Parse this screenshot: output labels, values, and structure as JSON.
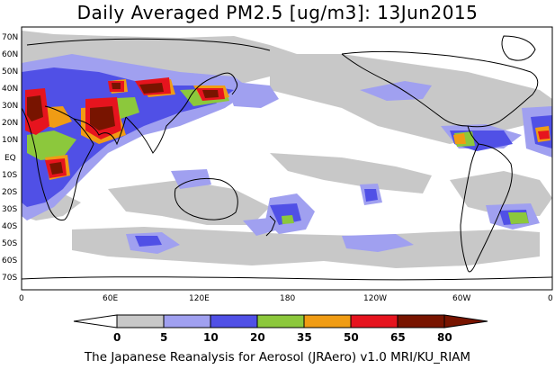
{
  "title": "Daily Averaged PM2.5 [ug/m3]: 13Jun2015",
  "footer": "The Japanese Reanalysis for Aerosol (JRAero) v1.0 MRI/KU_RIAM",
  "map": {
    "lat_labels": [
      "70N",
      "60N",
      "50N",
      "40N",
      "30N",
      "20N",
      "10N",
      "EQ",
      "10S",
      "20S",
      "30S",
      "40S",
      "50S",
      "60S",
      "70S"
    ],
    "lon_labels": [
      "0",
      "60E",
      "120E",
      "180",
      "120W",
      "60W",
      "0"
    ]
  },
  "legend": {
    "levels": [
      "0",
      "5",
      "10",
      "20",
      "35",
      "50",
      "65",
      "80"
    ],
    "colors": [
      "#ffffff",
      "#c8c8c8",
      "#a0a0f0",
      "#5050e6",
      "#8cc83c",
      "#f09c14",
      "#e6141e",
      "#781400"
    ]
  },
  "colors": {
    "land_outline": "#000000",
    "frame": "#000000"
  }
}
